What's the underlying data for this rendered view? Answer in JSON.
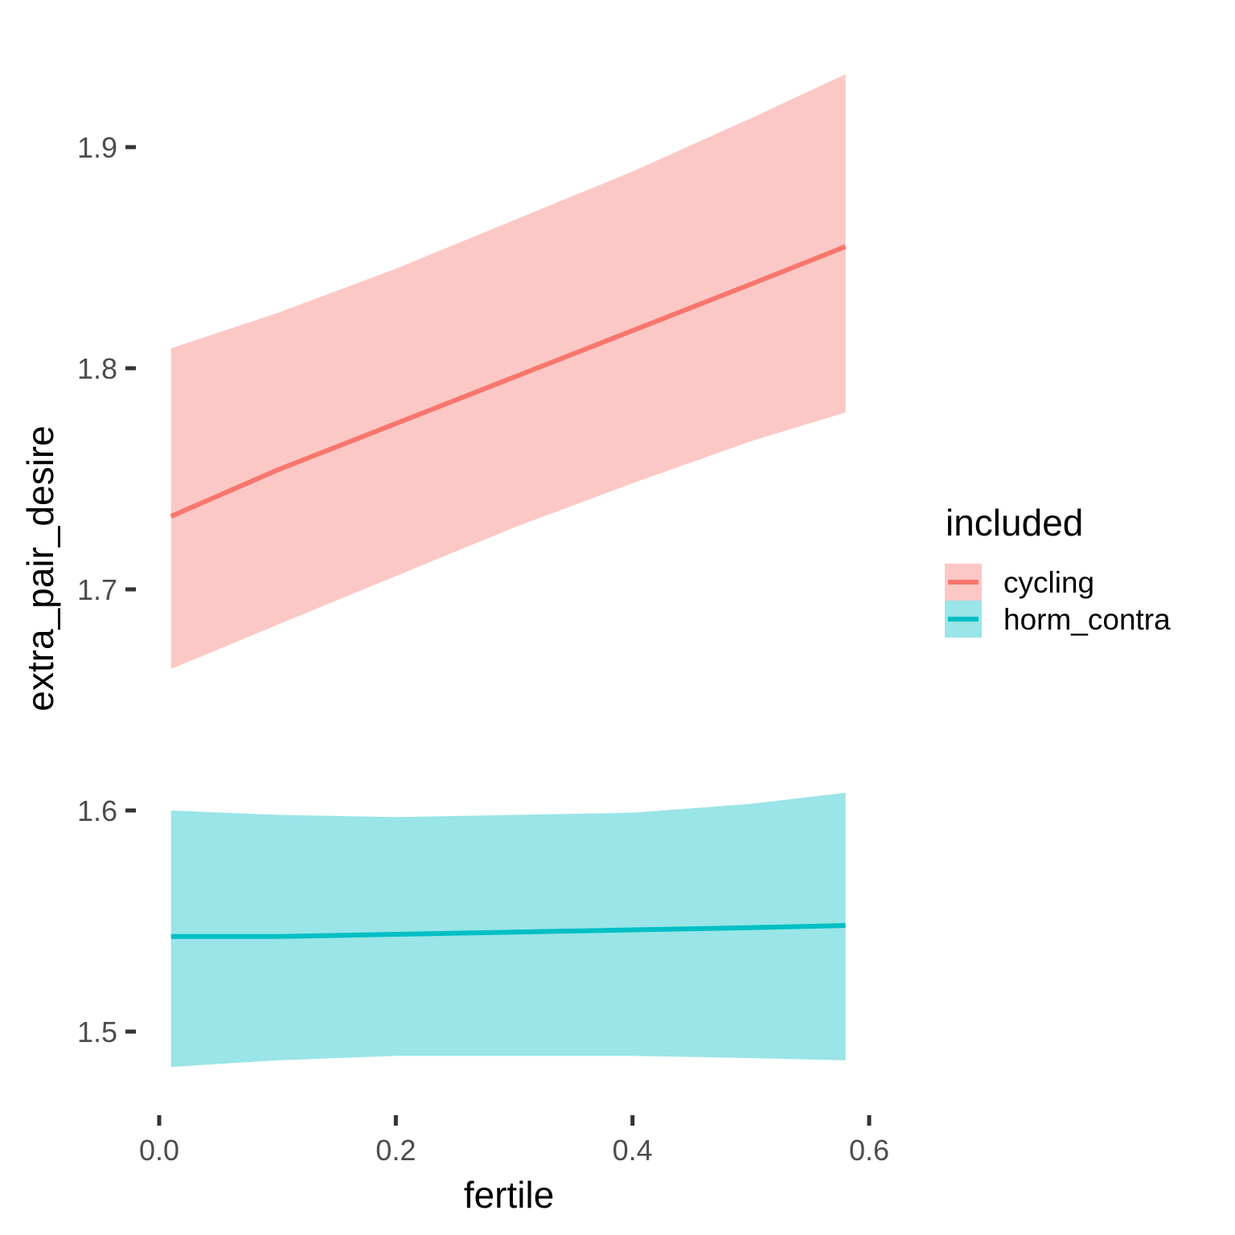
{
  "chart_data": {
    "type": "line",
    "title": "",
    "xlabel": "fertile",
    "ylabel": "extra_pair_desire",
    "xlim": [
      0.0,
      0.6
    ],
    "ylim": [
      1.5,
      1.9
    ],
    "x_ticks": [
      0.0,
      0.2,
      0.4,
      0.6
    ],
    "x_tick_labels": [
      "0.0",
      "0.2",
      "0.4",
      "0.6"
    ],
    "y_ticks": [
      1.5,
      1.6,
      1.7,
      1.8,
      1.9
    ],
    "y_tick_labels": [
      "1.5",
      "1.6",
      "1.7",
      "1.8",
      "1.9"
    ],
    "grid": false,
    "legend": {
      "title": "included",
      "position": "right"
    },
    "series": [
      {
        "name": "cycling",
        "color": "#F8766D",
        "ribbon_color": "#F8766D",
        "x": [
          0.01,
          0.1,
          0.2,
          0.3,
          0.4,
          0.5,
          0.58
        ],
        "y": [
          1.733,
          1.754,
          1.775,
          1.796,
          1.817,
          1.838,
          1.855
        ],
        "lower": [
          1.664,
          1.684,
          1.706,
          1.728,
          1.748,
          1.767,
          1.78
        ],
        "upper": [
          1.809,
          1.825,
          1.845,
          1.867,
          1.889,
          1.913,
          1.933
        ]
      },
      {
        "name": "horm_contra",
        "color": "#00BFC4",
        "ribbon_color": "#00BFC4",
        "x": [
          0.01,
          0.1,
          0.2,
          0.3,
          0.4,
          0.5,
          0.58
        ],
        "y": [
          1.543,
          1.543,
          1.544,
          1.545,
          1.546,
          1.547,
          1.548
        ],
        "lower": [
          1.484,
          1.487,
          1.489,
          1.489,
          1.489,
          1.488,
          1.487
        ],
        "upper": [
          1.6,
          1.598,
          1.597,
          1.598,
          1.599,
          1.603,
          1.608
        ]
      }
    ]
  }
}
